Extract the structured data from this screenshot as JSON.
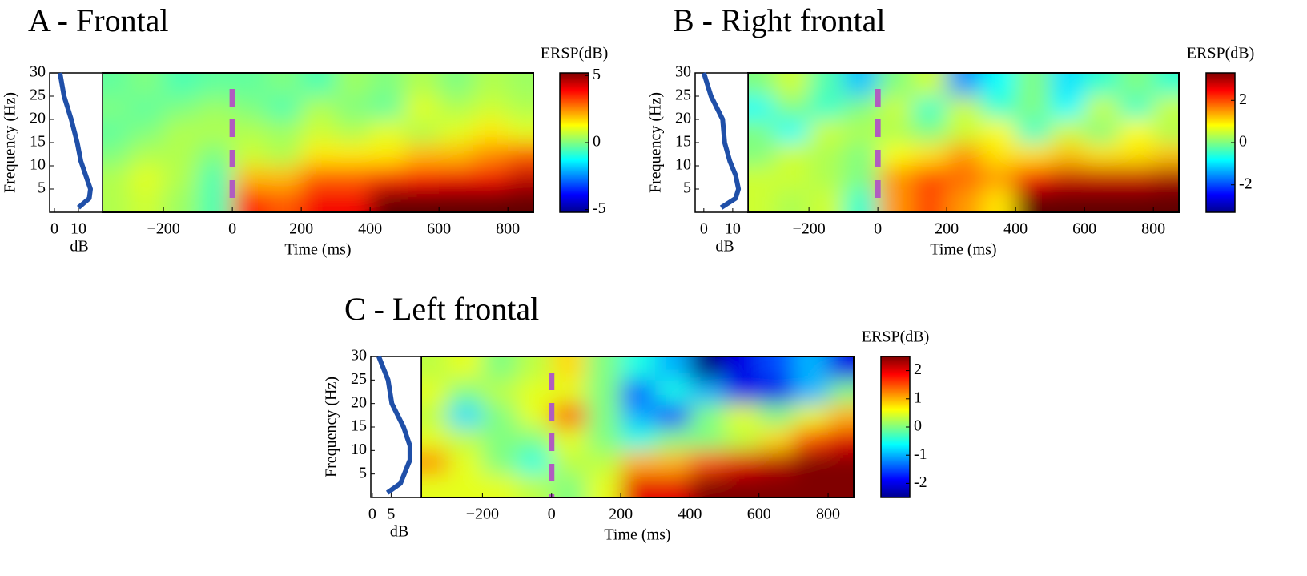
{
  "chart_data": [
    {
      "type": "heatmap",
      "title": "A - Frontal",
      "xlabel": "Time (ms)",
      "ylabel": "Frequency (Hz)",
      "x": [
        -350,
        -250,
        -150,
        -50,
        50,
        150,
        250,
        350,
        450,
        550,
        650,
        750,
        850
      ],
      "y": [
        2.5,
        7.5,
        12.5,
        17.5,
        22.5,
        27.5
      ],
      "z": [
        [
          0.5,
          0.8,
          0.3,
          -0.5,
          3.5,
          3,
          4,
          4,
          5.5,
          5.5,
          5.5,
          5.5,
          5.5
        ],
        [
          0.5,
          1,
          0.5,
          -0.5,
          2,
          2,
          3,
          3,
          3.5,
          3.8,
          4,
          4,
          4.5
        ],
        [
          0,
          0.5,
          0.5,
          0,
          0.8,
          0.5,
          1.5,
          1.5,
          1.5,
          2,
          2,
          2.5,
          3
        ],
        [
          -0.3,
          0,
          0.5,
          0.5,
          0.5,
          0.3,
          0.8,
          0.5,
          1,
          0.5,
          1,
          1.5,
          1
        ],
        [
          0,
          -0.3,
          0,
          0.3,
          0,
          -0.5,
          0.5,
          0,
          -0.3,
          1,
          0.5,
          0.8,
          0.5
        ],
        [
          -0.3,
          0,
          -0.5,
          -0.3,
          -0.3,
          0,
          -0.5,
          0.3,
          0,
          0.5,
          0,
          0.5,
          0.3
        ]
      ],
      "xlim": [
        -377,
        874
      ],
      "ylim": [
        0,
        30
      ],
      "xticks": [
        {
          "value": -200,
          "label": "−200"
        },
        0,
        200,
        400,
        600,
        800
      ],
      "yticks": [
        5,
        10,
        15,
        20,
        25,
        30
      ],
      "event_time": 0,
      "event_color": "#b05cc0",
      "colorbar": {
        "label": "ERSP(dB)",
        "clim": [
          -5.2,
          5.2
        ],
        "ticks": [
          -5,
          0,
          5
        ]
      },
      "spectrum": {
        "xlabel": "dB",
        "freqs": [
          1,
          3,
          5,
          8,
          11,
          15,
          20,
          25,
          30
        ],
        "values": [
          10,
          14.5,
          15,
          13,
          11,
          9.5,
          7,
          4,
          2.3
        ],
        "xlim": [
          -2,
          20
        ],
        "xticks": [
          0,
          10
        ],
        "color": "#1f4fa8"
      }
    },
    {
      "type": "heatmap",
      "title": "B - Right frontal",
      "xlabel": "Time (ms)",
      "ylabel": "Frequency (Hz)",
      "x": [
        -350,
        -250,
        -150,
        -50,
        50,
        150,
        250,
        350,
        450,
        550,
        650,
        750,
        850
      ],
      "y": [
        2.5,
        7.5,
        12.5,
        17.5,
        22.5,
        27.5
      ],
      "z": [
        [
          0.5,
          0.3,
          0.5,
          -0.5,
          1.5,
          2,
          1.5,
          1,
          3.5,
          3.5,
          3.5,
          3.5,
          3.5
        ],
        [
          0.5,
          0.5,
          0.3,
          0,
          1.5,
          2,
          1.8,
          1.5,
          2.5,
          2.8,
          2.8,
          2.8,
          3
        ],
        [
          0,
          0.5,
          0.3,
          0,
          0.8,
          1,
          1.5,
          1,
          1,
          1.2,
          1,
          1,
          1.2
        ],
        [
          0,
          -0.8,
          0.5,
          0.3,
          0.3,
          0,
          0.5,
          0.8,
          -0.5,
          0.5,
          0,
          0.8,
          0.3
        ],
        [
          -0.8,
          0,
          -0.5,
          0,
          0.5,
          -0.5,
          0.5,
          -0.5,
          0,
          -0.8,
          0.5,
          -0.5,
          0.5
        ],
        [
          0,
          0.5,
          -0.3,
          -1.2,
          0,
          0.5,
          -1.5,
          -0.8,
          0,
          -1,
          -0.5,
          0,
          -0.5
        ]
      ],
      "xlim": [
        -377,
        874
      ],
      "ylim": [
        0,
        30
      ],
      "xticks": [
        {
          "value": -200,
          "label": "−200"
        },
        0,
        200,
        400,
        600,
        800
      ],
      "yticks": [
        5,
        10,
        15,
        20,
        25,
        30
      ],
      "event_time": 0,
      "event_color": "#b05cc0",
      "colorbar": {
        "label": "ERSP(dB)",
        "clim": [
          -3.3,
          3.3
        ],
        "ticks": [
          -2,
          0,
          2
        ]
      },
      "spectrum": {
        "xlabel": "dB",
        "freqs": [
          1,
          3,
          5,
          8,
          11,
          15,
          20,
          25,
          30
        ],
        "values": [
          6,
          11,
          12,
          11,
          9,
          7.2,
          6.5,
          2.5,
          0
        ],
        "xlim": [
          -3,
          15.3
        ],
        "xticks": [
          0,
          10
        ],
        "color": "#1f4fa8"
      }
    },
    {
      "type": "heatmap",
      "title": "C - Left frontal",
      "xlabel": "Time (ms)",
      "ylabel": "Frequency (Hz)",
      "x": [
        -350,
        -250,
        -150,
        -50,
        50,
        150,
        250,
        350,
        450,
        550,
        650,
        750,
        850
      ],
      "y": [
        2.5,
        7.5,
        12.5,
        17.5,
        22.5,
        27.5
      ],
      "z": [
        [
          0.5,
          0.5,
          0.5,
          0.3,
          0,
          0.5,
          2,
          2,
          2.5,
          2.5,
          2.5,
          2.5,
          2.5
        ],
        [
          1.2,
          0.5,
          0,
          -0.5,
          0.3,
          0.3,
          1,
          1,
          1.5,
          2,
          2.2,
          2.5,
          2.5
        ],
        [
          0.5,
          0.3,
          0,
          0,
          0.5,
          0,
          -0.5,
          0,
          0,
          0.3,
          0.8,
          1.5,
          2
        ],
        [
          0.3,
          -0.8,
          0,
          0.5,
          1.5,
          0,
          -1,
          -1.8,
          0,
          0.5,
          0,
          0.5,
          1
        ],
        [
          0.5,
          0,
          0.3,
          0.5,
          0.5,
          0,
          -1.5,
          -0.5,
          -1,
          -2,
          -2,
          -1,
          0
        ],
        [
          0.3,
          0.5,
          0,
          0.3,
          0.8,
          0,
          -0.5,
          -1,
          -2.5,
          -2,
          -1.5,
          -1,
          -2
        ]
      ],
      "xlim": [
        -377,
        874
      ],
      "ylim": [
        0,
        30
      ],
      "xticks": [
        {
          "value": -200,
          "label": "−200"
        },
        0,
        200,
        400,
        600,
        800
      ],
      "yticks": [
        5,
        10,
        15,
        20,
        25,
        30
      ],
      "event_time": 0,
      "event_color": "#b05cc0",
      "colorbar": {
        "label": "ERSP(dB)",
        "clim": [
          -2.5,
          2.5
        ],
        "ticks": [
          -2,
          -1,
          0,
          1,
          2
        ]
      },
      "spectrum": {
        "xlabel": "dB",
        "freqs": [
          1,
          3,
          5,
          8,
          11,
          15,
          20,
          25,
          30
        ],
        "values": [
          4,
          7.5,
          8.5,
          10,
          10,
          8.3,
          5.2,
          4.2,
          1.7
        ],
        "xlim": [
          -0.4,
          13
        ],
        "xticks": [
          0,
          5
        ],
        "color": "#1f4fa8"
      }
    }
  ]
}
